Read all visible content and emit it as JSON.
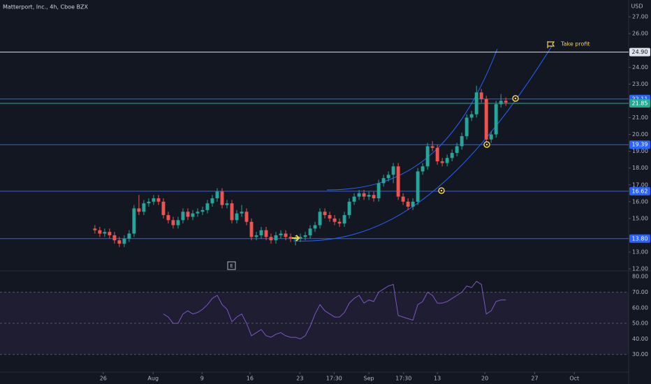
{
  "chart_data": {
    "type": "candlestick",
    "title": "Matterport, Inc., 4h, Cboe BZX",
    "currency": "USD",
    "annotation": "Take profit",
    "event_marker": "E",
    "xlim": [
      -19.4,
      109.1
    ],
    "xticks": [
      {
        "value": 1.7,
        "label": "26"
      },
      {
        "value": 11.9,
        "label": "Aug"
      },
      {
        "value": 21.9,
        "label": "9"
      },
      {
        "value": 31.7,
        "label": "16"
      },
      {
        "value": 41.9,
        "label": "23"
      },
      {
        "value": 48.9,
        "label": "17:30"
      },
      {
        "value": 56,
        "label": "Sep"
      },
      {
        "value": 63.1,
        "label": "17:30"
      },
      {
        "value": 70,
        "label": "13"
      },
      {
        "value": 79.7,
        "label": "20"
      },
      {
        "value": 89.9,
        "label": "27"
      },
      {
        "value": 98,
        "label": "Oct"
      }
    ],
    "ylim": [
      11.88,
      28.0
    ],
    "yticks": [
      {
        "value": 27,
        "label": "27.00"
      },
      {
        "value": 26,
        "label": "26.00"
      },
      {
        "value": 24,
        "label": "24.00"
      },
      {
        "value": 23,
        "label": "23.00"
      },
      {
        "value": 21,
        "label": "21.00"
      },
      {
        "value": 20,
        "label": "20.00"
      },
      {
        "value": 19,
        "label": "19.00"
      },
      {
        "value": 18,
        "label": "18.00"
      },
      {
        "value": 17,
        "label": "17.00"
      },
      {
        "value": 16,
        "label": "16.00"
      },
      {
        "value": 15,
        "label": "15.00"
      },
      {
        "value": 13,
        "label": "13.00"
      },
      {
        "value": 12,
        "label": "12.00"
      }
    ],
    "up_color": "#26a69a",
    "down_color": "#ef5350",
    "open": [
      14.4,
      14.3,
      14.1,
      14.2,
      14.0,
      13.7,
      13.5,
      13.8,
      14.1,
      15.6,
      15.4,
      15.9,
      16.0,
      16.2,
      16.0,
      15.2,
      14.9,
      14.6,
      14.9,
      15.4,
      15.1,
      15.3,
      15.4,
      15.5,
      15.9,
      16.2,
      16.6,
      15.8,
      15.9,
      14.9,
      15.3,
      15.4,
      14.8,
      13.9,
      14.0,
      14.3,
      13.9,
      13.7,
      14.0,
      14.1,
      13.9,
      13.8,
      13.8,
      13.9,
      14.0,
      14.4,
      14.6,
      15.4,
      15.2,
      15.0,
      14.8,
      14.7,
      15.2,
      16.0,
      16.3,
      16.5,
      16.3,
      16.4,
      16.2,
      17.1,
      17.4,
      17.6,
      18.1,
      16.3,
      16.0,
      15.7,
      16.0,
      17.8,
      18.1,
      19.3,
      19.2,
      18.4,
      18.3,
      18.6,
      18.9,
      19.3,
      19.9,
      21.0,
      21.2,
      22.5,
      22.1,
      19.7,
      20.0,
      21.8,
      22.0
    ],
    "high": [
      14.6,
      14.5,
      14.4,
      14.4,
      14.2,
      13.9,
      14.0,
      14.3,
      15.8,
      16.4,
      16.1,
      16.2,
      16.4,
      16.4,
      16.2,
      15.4,
      15.1,
      15.1,
      15.6,
      15.6,
      15.5,
      15.6,
      15.7,
      16.1,
      16.4,
      16.8,
      16.8,
      16.1,
      16.1,
      15.5,
      15.8,
      15.6,
      15.0,
      14.2,
      14.5,
      14.5,
      14.1,
      14.2,
      14.3,
      14.3,
      14.1,
      14.0,
      14.1,
      14.2,
      14.6,
      14.8,
      15.6,
      15.6,
      15.4,
      15.2,
      15.0,
      15.4,
      16.2,
      16.5,
      16.7,
      16.7,
      16.6,
      16.6,
      17.3,
      17.6,
      17.8,
      18.3,
      18.3,
      16.5,
      16.2,
      16.2,
      18.0,
      18.3,
      19.5,
      19.6,
      19.4,
      18.6,
      18.8,
      19.1,
      19.5,
      20.1,
      21.2,
      21.4,
      22.9,
      22.7,
      22.3,
      20.2,
      22.0,
      22.4,
      22.2
    ],
    "low": [
      14.1,
      13.9,
      13.9,
      13.8,
      13.5,
      13.3,
      13.3,
      13.6,
      13.9,
      15.2,
      15.2,
      15.7,
      15.8,
      15.8,
      15.0,
      14.7,
      14.4,
      14.4,
      14.7,
      14.9,
      14.9,
      15.1,
      15.2,
      15.3,
      15.7,
      16.0,
      15.6,
      15.6,
      14.7,
      14.7,
      15.1,
      14.6,
      13.7,
      13.7,
      13.8,
      13.7,
      13.5,
      13.5,
      13.8,
      13.7,
      13.6,
      13.4,
      13.6,
      13.7,
      13.8,
      14.2,
      14.4,
      15.0,
      14.8,
      14.6,
      14.5,
      14.5,
      15.0,
      15.8,
      16.1,
      16.1,
      16.1,
      16.0,
      16.0,
      16.9,
      17.2,
      17.1,
      16.1,
      15.8,
      15.5,
      15.5,
      15.8,
      17.6,
      17.9,
      19.0,
      18.2,
      18.1,
      18.1,
      18.4,
      18.7,
      19.1,
      19.7,
      20.8,
      21.0,
      21.9,
      19.5,
      19.5,
      19.8,
      21.6,
      21.7
    ],
    "close": [
      14.3,
      14.1,
      14.2,
      14.0,
      13.7,
      13.5,
      13.8,
      14.1,
      15.6,
      15.4,
      15.9,
      16.0,
      16.2,
      16.0,
      15.2,
      14.9,
      14.6,
      14.9,
      15.4,
      15.1,
      15.3,
      15.4,
      15.5,
      15.9,
      16.2,
      16.6,
      15.8,
      15.9,
      14.9,
      15.3,
      15.4,
      14.8,
      13.9,
      14.0,
      14.3,
      13.9,
      13.7,
      14.0,
      14.1,
      13.9,
      13.8,
      13.8,
      13.9,
      14.0,
      14.4,
      14.6,
      15.4,
      15.2,
      15.0,
      14.8,
      14.7,
      15.2,
      16.0,
      16.3,
      16.5,
      16.3,
      16.4,
      16.2,
      17.1,
      17.4,
      17.6,
      18.1,
      16.3,
      16.0,
      15.7,
      16.0,
      17.8,
      18.1,
      19.3,
      19.2,
      18.4,
      18.3,
      18.6,
      18.9,
      19.3,
      19.9,
      21.0,
      21.2,
      22.5,
      22.1,
      19.7,
      20.0,
      21.8,
      22.0,
      21.9
    ],
    "levels": [
      {
        "value": 24.9,
        "label": "24.90",
        "color": "#e0e3eb"
      },
      {
        "value": 22.11,
        "label": "22.11",
        "color": "#2962ff"
      },
      {
        "value": 21.85,
        "label": "21.85",
        "color": "#22ab94"
      },
      {
        "value": 19.39,
        "label": "19.39",
        "color": "#2962ff"
      },
      {
        "value": 16.62,
        "label": "16.62",
        "color": "#2962ff"
      },
      {
        "value": 13.8,
        "label": "13.80",
        "color": "#2962ff"
      }
    ],
    "rsi": {
      "color": "#7e57c2",
      "ylim": [
        18.6,
        82.8
      ],
      "band": [
        30,
        70
      ],
      "yticks": [
        {
          "value": 80,
          "label": "80.00"
        },
        {
          "value": 70,
          "label": "70.00"
        },
        {
          "value": 60,
          "label": "60.00"
        },
        {
          "value": 50,
          "label": "50.00"
        },
        {
          "value": 40,
          "label": "40.00"
        },
        {
          "value": 30,
          "label": "30.00"
        }
      ],
      "values": [
        null,
        null,
        null,
        null,
        null,
        null,
        null,
        null,
        null,
        null,
        null,
        null,
        null,
        null,
        56,
        54,
        50,
        50,
        56,
        58,
        56,
        57,
        59,
        62,
        66,
        68,
        62,
        59,
        51,
        54,
        56,
        50,
        42,
        44,
        46,
        42,
        41,
        43,
        44,
        42,
        41,
        41,
        40,
        42,
        48,
        56,
        62,
        58,
        56,
        54,
        54,
        57,
        63,
        66,
        68,
        63,
        65,
        64,
        70,
        72,
        74,
        75,
        55,
        54,
        53,
        52,
        62,
        64,
        70,
        68,
        63,
        63,
        64,
        66,
        68,
        70,
        74,
        73,
        77,
        75,
        56,
        58,
        64,
        65,
        65
      ]
    }
  }
}
